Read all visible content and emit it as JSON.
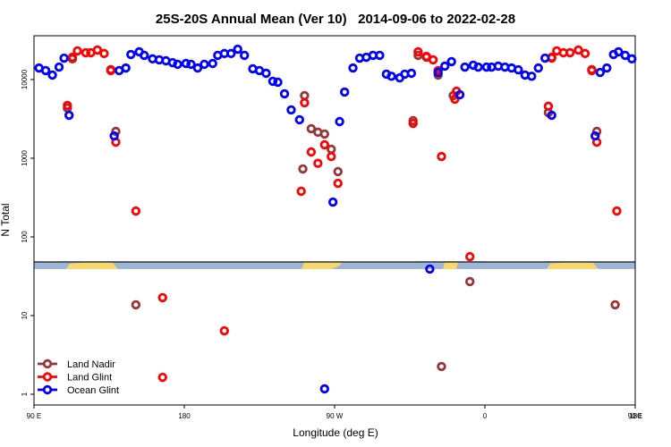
{
  "chart_data": {
    "type": "scatter",
    "title": "25S-20S Annual Mean (Ver 10)   2014-09-06 to 2022-02-28",
    "x_label": "Longitude (deg E)",
    "y_label": "N Total",
    "log_y": true,
    "legend": "bottom-left",
    "xlim": [
      90,
      450
    ],
    "xticks": [
      {
        "value": 90,
        "label": "90 E"
      },
      {
        "value": 180,
        "label": "180"
      },
      {
        "value": 270,
        "label": "90 W"
      },
      {
        "value": 360,
        "label": "0"
      },
      {
        "value": 450,
        "label": "90 E"
      },
      {
        "value": 540,
        "label": "180"
      }
    ],
    "ylim": [
      0.73,
      36000
    ],
    "yticks": [
      1,
      10,
      100,
      1000,
      10000
    ],
    "series": [
      {
        "name": "Land Nadir",
        "color": "#9b3535",
        "x": [
          110,
          113,
          136,
          139,
          151,
          251,
          252,
          256,
          260,
          264,
          268,
          272,
          317,
          320,
          325,
          332,
          334,
          341,
          351,
          398,
          400,
          424,
          427,
          438
        ],
        "values": [
          4330,
          18300,
          13400,
          2190,
          13.7,
          731,
          6240,
          2370,
          2140,
          2030,
          1300,
          676,
          3000,
          20300,
          19200,
          11400,
          2.25,
          6240,
          27,
          3800,
          18700,
          13400,
          2190,
          13.7
        ]
      },
      {
        "name": "Land Glint",
        "color": "#ff0000",
        "x": [
          110,
          113,
          116,
          121,
          124,
          128,
          132,
          136,
          139,
          151,
          167,
          167,
          204,
          250,
          252,
          256,
          260,
          264,
          268,
          272,
          317,
          320,
          325,
          329,
          332,
          334,
          342,
          343,
          351,
          398,
          400,
          403,
          407,
          411,
          416,
          420,
          424,
          427,
          439
        ],
        "values": [
          4680,
          19200,
          23100,
          21900,
          21900,
          23700,
          21400,
          13000,
          1600,
          213,
          16.9,
          1.64,
          6.4,
          380,
          5070,
          1200,
          860,
          1480,
          1050,
          480,
          2770,
          22500,
          19700,
          17800,
          13000,
          1050,
          5620,
          7100,
          56,
          4570,
          19200,
          23100,
          21900,
          21900,
          23700,
          21400,
          13000,
          1600,
          213
        ]
      },
      {
        "name": "Ocean Glint",
        "color": "#0000ff",
        "x": [
          93,
          97,
          101,
          105,
          108,
          111,
          138,
          141,
          145,
          148,
          153,
          156,
          161,
          165,
          169,
          173,
          176,
          181,
          184,
          188,
          192,
          197,
          200,
          204,
          208,
          212,
          216,
          221,
          225,
          229,
          233,
          236,
          240,
          244,
          249,
          264,
          269,
          273,
          276,
          281,
          285,
          289,
          293,
          297,
          301,
          304,
          309,
          312,
          316,
          327,
          332,
          336,
          340,
          345,
          348,
          353,
          356,
          361,
          364,
          368,
          372,
          376,
          380,
          384,
          388,
          392,
          396,
          400,
          426,
          429,
          433,
          437,
          440,
          444,
          448
        ],
        "values": [
          14000,
          13000,
          11400,
          14400,
          18700,
          3510,
          1920,
          13000,
          14000,
          20800,
          22500,
          20300,
          18300,
          17800,
          17300,
          16400,
          15600,
          16000,
          15600,
          14000,
          15600,
          16000,
          20300,
          21400,
          21400,
          24300,
          20300,
          13700,
          13000,
          12000,
          9500,
          9250,
          6580,
          4110,
          3080,
          1.17,
          277,
          2920,
          6930,
          14000,
          18700,
          19200,
          20300,
          20300,
          11700,
          11000,
          10500,
          11700,
          12000,
          39,
          12300,
          14800,
          16900,
          6410,
          14400,
          15200,
          14400,
          14400,
          14400,
          14800,
          14400,
          14000,
          13300,
          11400,
          11000,
          14000,
          18700,
          3510,
          1920,
          12300,
          14000,
          20800,
          22500,
          20300,
          18300
        ]
      }
    ]
  }
}
